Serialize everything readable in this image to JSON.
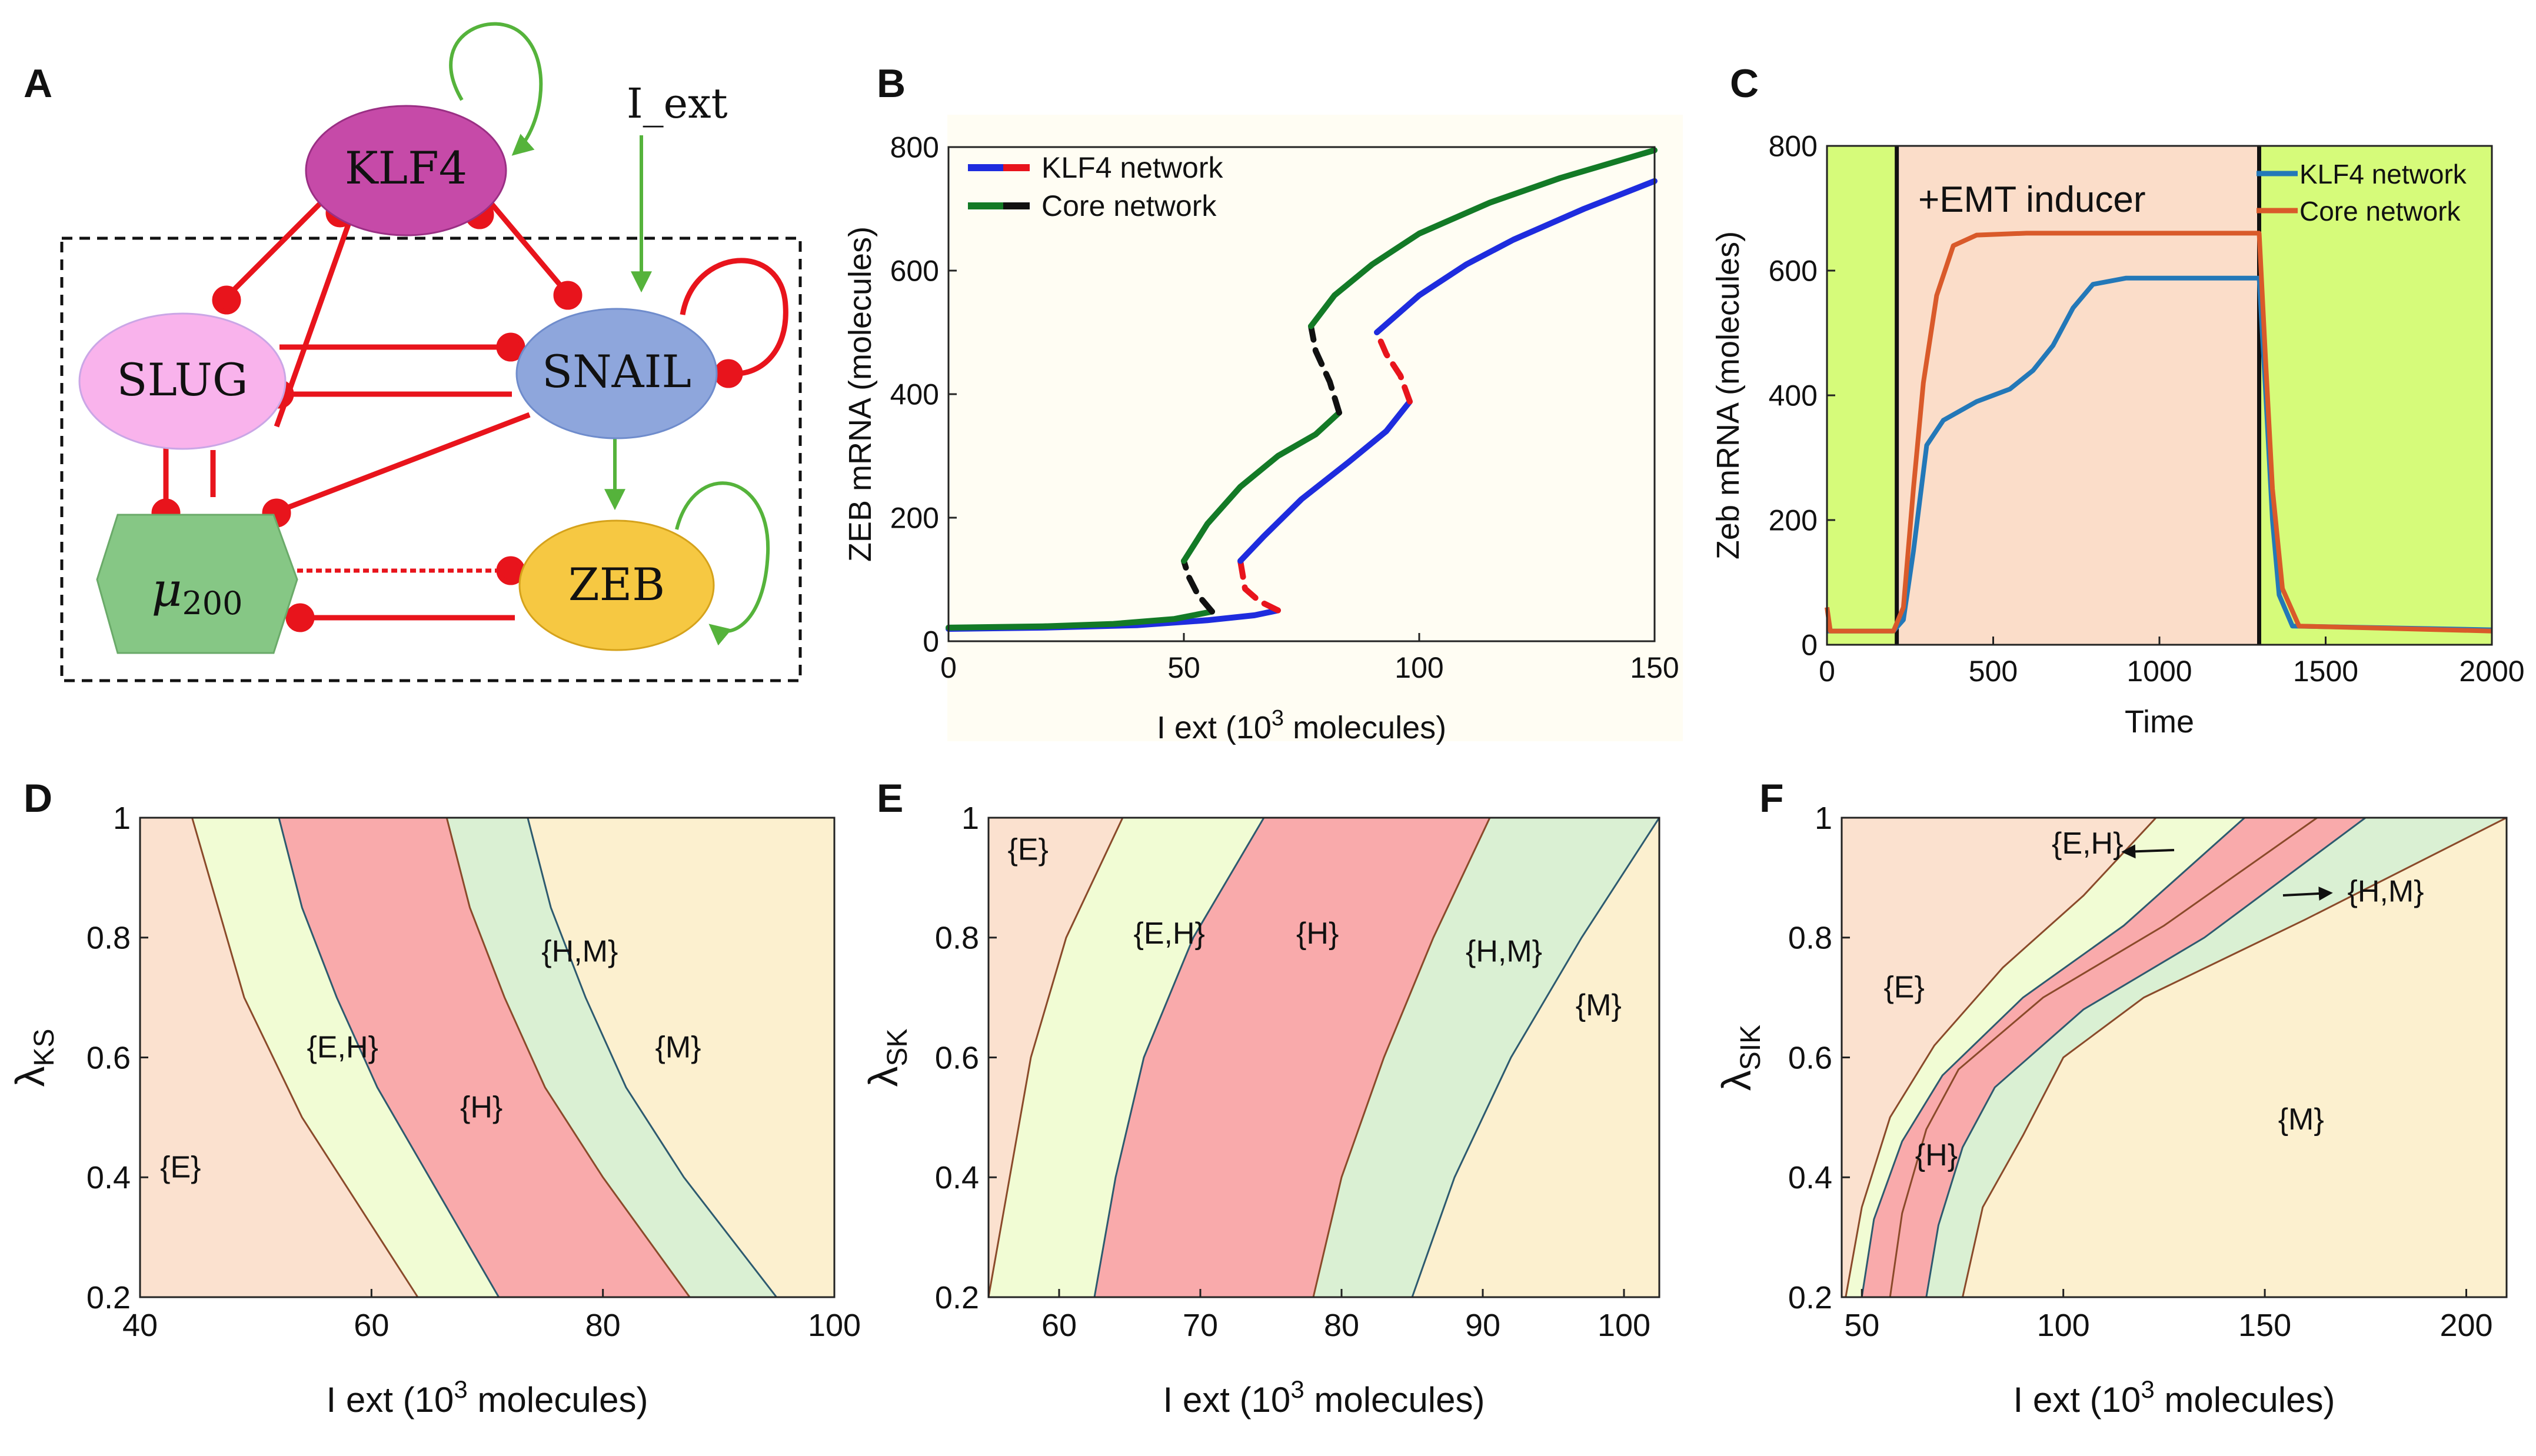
{
  "panel_letters": [
    "A",
    "B",
    "C",
    "D",
    "E",
    "F"
  ],
  "network": {
    "nodes": {
      "klf4": "KLF4",
      "slug": "SLUG",
      "snail": "SNAIL",
      "zeb": "ZEB",
      "mu_main": "μ",
      "mu_sub": "200"
    },
    "input_label": "I_ext"
  },
  "colors": {
    "klf4_node": "#c64aa8",
    "slug_node": "#f9b3ec",
    "snail_node": "#8ea6dc",
    "zeb_node": "#f6c842",
    "mu_node": "#86c785",
    "inhibit": "#e8141c",
    "activate": "#55b33b",
    "region_E": "#fbe1cf",
    "region_EH": "#f1fcd4",
    "region_H": "#f9aaab",
    "region_HM": "#daf0d3",
    "region_M": "#fcf0cf",
    "blue": "#1e2cde",
    "green": "#137a26",
    "orange": "#d95a2a",
    "tblue": "#2378b8",
    "lime": "#d6fb7a",
    "peach": "#fbddc9"
  },
  "chart_data": [
    {
      "id": "B",
      "type": "line",
      "xlabel_pre": "I ext (10",
      "xlabel_sup": "3",
      "xlabel_post": " molecules)",
      "ylabel": "ZEB mRNA (molecules)",
      "xlim": [
        0,
        150
      ],
      "ylim": [
        0,
        800
      ],
      "xticks": [
        0,
        50,
        100,
        150
      ],
      "yticks": [
        0,
        200,
        400,
        600,
        800
      ],
      "legend": [
        "KLF4 network",
        "Core network"
      ],
      "series": [
        {
          "name": "KLF4 network",
          "branches": [
            {
              "style": "stable",
              "points": [
                [
                  0,
                  20
                ],
                [
                  20,
                  22
                ],
                [
                  40,
                  26
                ],
                [
                  55,
                  34
                ],
                [
                  65,
                  42
                ],
                [
                  70,
                  50
                ]
              ]
            },
            {
              "style": "unstable",
              "points": [
                [
                  70,
                  50
                ],
                [
                  66,
                  65
                ],
                [
                  63,
                  85
                ],
                [
                  62,
                  130
                ]
              ]
            },
            {
              "style": "stable",
              "points": [
                [
                  62,
                  130
                ],
                [
                  67,
                  170
                ],
                [
                  75,
                  230
                ],
                [
                  85,
                  290
                ],
                [
                  93,
                  340
                ],
                [
                  98,
                  388
                ]
              ]
            },
            {
              "style": "unstable",
              "points": [
                [
                  98,
                  388
                ],
                [
                  96,
                  430
                ],
                [
                  93,
                  465
                ],
                [
                  91,
                  500
                ]
              ]
            },
            {
              "style": "stable",
              "points": [
                [
                  91,
                  500
                ],
                [
                  100,
                  560
                ],
                [
                  110,
                  610
                ],
                [
                  120,
                  650
                ],
                [
                  135,
                  700
                ],
                [
                  150,
                  745
                ]
              ]
            }
          ]
        },
        {
          "name": "Core network",
          "branches": [
            {
              "style": "stable",
              "points": [
                [
                  0,
                  22
                ],
                [
                  20,
                  24
                ],
                [
                  35,
                  28
                ],
                [
                  48,
                  36
                ],
                [
                  56,
                  48
                ]
              ]
            },
            {
              "style": "unstable",
              "points": [
                [
                  56,
                  48
                ],
                [
                  53,
                  75
                ],
                [
                  51,
                  105
                ],
                [
                  50,
                  130
                ]
              ]
            },
            {
              "style": "stable",
              "points": [
                [
                  50,
                  130
                ],
                [
                  55,
                  190
                ],
                [
                  62,
                  250
                ],
                [
                  70,
                  300
                ],
                [
                  78,
                  335
                ],
                [
                  83,
                  370
                ]
              ]
            },
            {
              "style": "unstable",
              "points": [
                [
                  83,
                  370
                ],
                [
                  81,
                  420
                ],
                [
                  78,
                  470
                ],
                [
                  77,
                  510
                ]
              ]
            },
            {
              "style": "stable",
              "points": [
                [
                  77,
                  510
                ],
                [
                  82,
                  560
                ],
                [
                  90,
                  610
                ],
                [
                  100,
                  660
                ],
                [
                  115,
                  710
                ],
                [
                  130,
                  750
                ],
                [
                  150,
                  795
                ]
              ]
            }
          ]
        }
      ]
    },
    {
      "id": "C",
      "type": "line",
      "xlabel": "Time",
      "ylabel": "Zeb mRNA (molecules)",
      "xlim": [
        0,
        2000
      ],
      "ylim": [
        0,
        800
      ],
      "xticks": [
        0,
        500,
        1000,
        1500,
        2000
      ],
      "yticks": [
        0,
        200,
        400,
        600,
        800
      ],
      "annotation": "+EMT inducer",
      "induction_window": [
        210,
        1300
      ],
      "legend": [
        "KLF4 network",
        "Core network"
      ],
      "series": [
        {
          "name": "KLF4 network",
          "points": [
            [
              0,
              22
            ],
            [
              200,
              22
            ],
            [
              230,
              40
            ],
            [
              260,
              150
            ],
            [
              300,
              320
            ],
            [
              350,
              360
            ],
            [
              450,
              390
            ],
            [
              550,
              410
            ],
            [
              620,
              440
            ],
            [
              680,
              480
            ],
            [
              740,
              540
            ],
            [
              800,
              578
            ],
            [
              900,
              588
            ],
            [
              1300,
              588
            ],
            [
              1320,
              400
            ],
            [
              1340,
              200
            ],
            [
              1360,
              80
            ],
            [
              1400,
              30
            ],
            [
              2000,
              24
            ]
          ]
        },
        {
          "name": "Core network",
          "points": [
            [
              0,
              60
            ],
            [
              10,
              22
            ],
            [
              200,
              22
            ],
            [
              230,
              60
            ],
            [
              260,
              250
            ],
            [
              290,
              420
            ],
            [
              330,
              560
            ],
            [
              380,
              640
            ],
            [
              450,
              657
            ],
            [
              600,
              660
            ],
            [
              1300,
              660
            ],
            [
              1320,
              450
            ],
            [
              1340,
              250
            ],
            [
              1370,
              90
            ],
            [
              1420,
              30
            ],
            [
              2000,
              22
            ]
          ]
        }
      ]
    },
    {
      "id": "D",
      "type": "area",
      "xlabel_pre": "I ext (10",
      "xlabel_sup": "3",
      "xlabel_post": " molecules)",
      "ylabel_main": "λ",
      "ylabel_sub": "KS",
      "xlim": [
        40,
        100
      ],
      "ylim": [
        0.2,
        1
      ],
      "xticks": [
        40,
        60,
        80,
        100
      ],
      "yticks": [
        0.2,
        0.4,
        0.6,
        0.8,
        1
      ],
      "boundaries": [
        [
          [
            44.5,
            1
          ],
          [
            46,
            0.9
          ],
          [
            49,
            0.7
          ],
          [
            54,
            0.5
          ],
          [
            59,
            0.35
          ],
          [
            64,
            0.2
          ]
        ],
        [
          [
            52,
            1
          ],
          [
            54,
            0.85
          ],
          [
            57,
            0.7
          ],
          [
            60.5,
            0.55
          ],
          [
            65,
            0.4
          ],
          [
            71,
            0.2
          ]
        ],
        [
          [
            66.5,
            1
          ],
          [
            68.5,
            0.85
          ],
          [
            71.5,
            0.7
          ],
          [
            75,
            0.55
          ],
          [
            80,
            0.4
          ],
          [
            87.5,
            0.2
          ]
        ],
        [
          [
            73.5,
            1
          ],
          [
            75.5,
            0.85
          ],
          [
            78.5,
            0.7
          ],
          [
            82,
            0.55
          ],
          [
            87,
            0.4
          ],
          [
            95,
            0.2
          ]
        ]
      ],
      "region_labels": [
        {
          "text": "{E}",
          "x": 43.5,
          "y": 0.4
        },
        {
          "text": "{E,H}",
          "x": 57.5,
          "y": 0.6
        },
        {
          "text": "{H}",
          "x": 69.5,
          "y": 0.5
        },
        {
          "text": "{H,M}",
          "x": 78,
          "y": 0.76
        },
        {
          "text": "{M}",
          "x": 86.5,
          "y": 0.6
        }
      ]
    },
    {
      "id": "E",
      "type": "area",
      "xlabel_pre": "I ext (10",
      "xlabel_sup": "3",
      "xlabel_post": " molecules)",
      "ylabel_main": "λ",
      "ylabel_sub": "SK",
      "xlim": [
        55,
        102.5
      ],
      "ylim": [
        0.2,
        1
      ],
      "xticks": [
        60,
        70,
        80,
        90,
        100
      ],
      "yticks": [
        0.2,
        0.4,
        0.6,
        0.8,
        1
      ],
      "boundaries": [
        [
          [
            55,
            0.2
          ],
          [
            56.5,
            0.4
          ],
          [
            58,
            0.6
          ],
          [
            60.5,
            0.8
          ],
          [
            64.5,
            1
          ]
        ],
        [
          [
            62.5,
            0.2
          ],
          [
            64,
            0.4
          ],
          [
            66,
            0.6
          ],
          [
            69.5,
            0.8
          ],
          [
            74.5,
            1
          ]
        ],
        [
          [
            78,
            0.2
          ],
          [
            80,
            0.4
          ],
          [
            83,
            0.6
          ],
          [
            86.5,
            0.8
          ],
          [
            90.5,
            1
          ]
        ],
        [
          [
            85,
            0.2
          ],
          [
            88,
            0.4
          ],
          [
            92,
            0.6
          ],
          [
            97,
            0.8
          ],
          [
            102.5,
            1
          ]
        ]
      ],
      "region_labels": [
        {
          "text": "{E}",
          "x": 57.8,
          "y": 0.93
        },
        {
          "text": "{E,H}",
          "x": 67.8,
          "y": 0.79
        },
        {
          "text": "{H}",
          "x": 78.3,
          "y": 0.79
        },
        {
          "text": "{H,M}",
          "x": 91.5,
          "y": 0.76
        },
        {
          "text": "{M}",
          "x": 98.2,
          "y": 0.67
        }
      ]
    },
    {
      "id": "F",
      "type": "area",
      "xlabel_pre": "I ext (10",
      "xlabel_sup": "3",
      "xlabel_post": " molecules)",
      "ylabel_main": "λ",
      "ylabel_sub": "SIK",
      "xlim": [
        45,
        210
      ],
      "ylim": [
        0.2,
        1
      ],
      "xticks": [
        50,
        100,
        150,
        200
      ],
      "yticks": [
        0.2,
        0.4,
        0.6,
        0.8,
        1
      ],
      "boundaries": [
        [
          [
            46,
            0.2
          ],
          [
            50,
            0.35
          ],
          [
            57,
            0.5
          ],
          [
            68,
            0.62
          ],
          [
            85,
            0.75
          ],
          [
            105,
            0.87
          ],
          [
            123,
            1
          ]
        ],
        [
          [
            50,
            0.2
          ],
          [
            53,
            0.33
          ],
          [
            60,
            0.46
          ],
          [
            70,
            0.57
          ],
          [
            90,
            0.7
          ],
          [
            115,
            0.82
          ],
          [
            145,
            1
          ]
        ],
        [
          [
            57,
            0.2
          ],
          [
            60,
            0.34
          ],
          [
            66,
            0.48
          ],
          [
            74,
            0.58
          ],
          [
            95,
            0.7
          ],
          [
            125,
            0.82
          ],
          [
            163,
            1
          ]
        ],
        [
          [
            66,
            0.2
          ],
          [
            69,
            0.32
          ],
          [
            75,
            0.45
          ],
          [
            83,
            0.55
          ],
          [
            105,
            0.68
          ],
          [
            135,
            0.8
          ],
          [
            175,
            1
          ]
        ],
        [
          [
            75,
            0.2
          ],
          [
            80,
            0.35
          ],
          [
            90,
            0.47
          ],
          [
            100,
            0.6
          ],
          [
            120,
            0.7
          ],
          [
            160,
            0.83
          ],
          [
            210,
            1
          ]
        ]
      ],
      "region_labels": [
        {
          "text": "{E}",
          "x": 60.5,
          "y": 0.7
        },
        {
          "text": "{H}",
          "x": 68.5,
          "y": 0.42
        },
        {
          "text": "{M}",
          "x": 159,
          "y": 0.48
        },
        {
          "text": "{E,H}",
          "x": 106,
          "y": 0.94
        },
        {
          "text": "{H,M}",
          "x": 180,
          "y": 0.86
        }
      ]
    }
  ]
}
